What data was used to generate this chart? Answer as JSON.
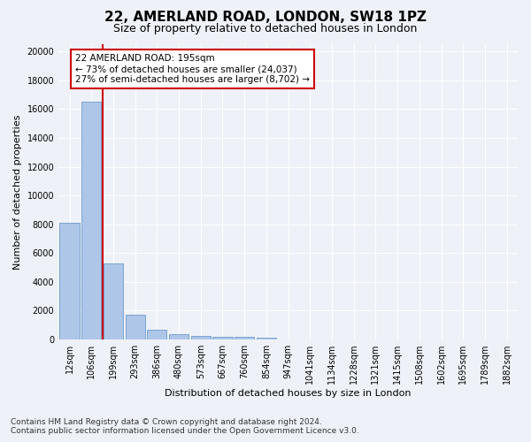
{
  "title": "22, AMERLAND ROAD, LONDON, SW18 1PZ",
  "subtitle": "Size of property relative to detached houses in London",
  "xlabel": "Distribution of detached houses by size in London",
  "ylabel": "Number of detached properties",
  "categories": [
    "12sqm",
    "106sqm",
    "199sqm",
    "293sqm",
    "386sqm",
    "480sqm",
    "573sqm",
    "667sqm",
    "760sqm",
    "854sqm",
    "947sqm",
    "1041sqm",
    "1134sqm",
    "1228sqm",
    "1321sqm",
    "1415sqm",
    "1508sqm",
    "1602sqm",
    "1695sqm",
    "1789sqm",
    "1882sqm"
  ],
  "values": [
    8100,
    16500,
    5300,
    1750,
    700,
    380,
    270,
    210,
    170,
    130,
    0,
    0,
    0,
    0,
    0,
    0,
    0,
    0,
    0,
    0,
    0
  ],
  "bar_color": "#aec6e8",
  "bar_edge_color": "#5a8fc2",
  "vline_color": "#cc0000",
  "annotation_text": "22 AMERLAND ROAD: 195sqm\n← 73% of detached houses are smaller (24,037)\n27% of semi-detached houses are larger (8,702) →",
  "annotation_box_color": "#ffffff",
  "annotation_box_edge_color": "#cc0000",
  "ylim": [
    0,
    20500
  ],
  "yticks": [
    0,
    2000,
    4000,
    6000,
    8000,
    10000,
    12000,
    14000,
    16000,
    18000,
    20000
  ],
  "footer_line1": "Contains HM Land Registry data © Crown copyright and database right 2024.",
  "footer_line2": "Contains public sector information licensed under the Open Government Licence v3.0.",
  "bg_color": "#eef2f8",
  "plot_bg_color": "#eef2f8",
  "grid_color": "#ffffff",
  "title_fontsize": 11,
  "subtitle_fontsize": 9,
  "axis_label_fontsize": 8,
  "tick_fontsize": 7,
  "annotation_fontsize": 7.5,
  "footer_fontsize": 6.5
}
